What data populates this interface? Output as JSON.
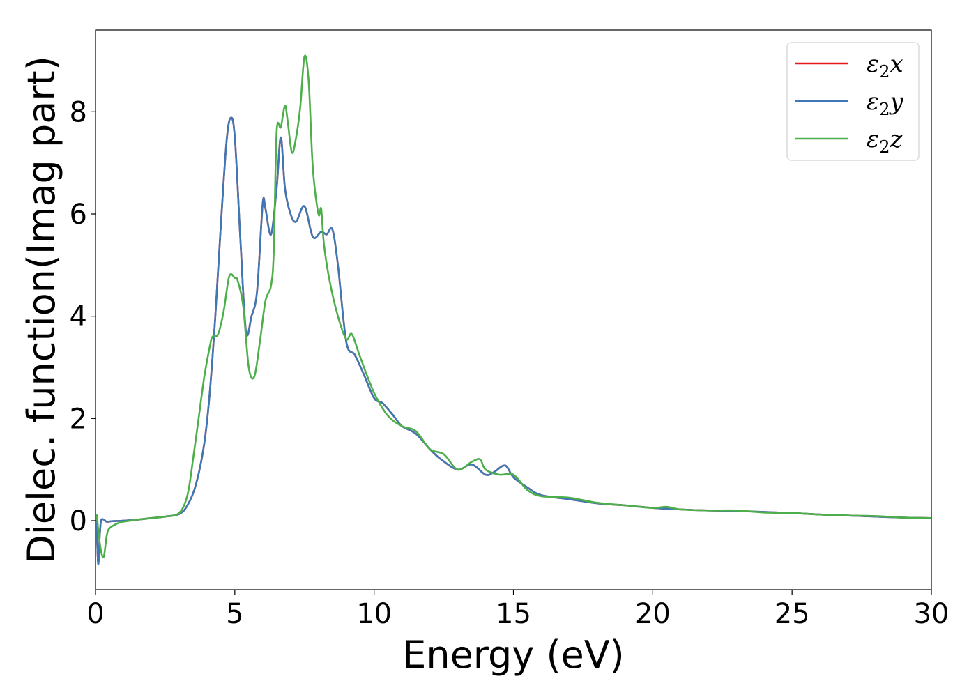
{
  "chart_data": {
    "type": "line",
    "title": "",
    "xlabel": "Energy (eV)",
    "ylabel": "Dielec. function(Imag part)",
    "xlim": [
      0,
      30
    ],
    "ylim": [
      -1.35,
      9.6
    ],
    "xticks": [
      0,
      5,
      10,
      15,
      20,
      25,
      30
    ],
    "yticks": [
      0,
      2,
      4,
      6,
      8
    ],
    "grid": false,
    "legend_position": "top-right",
    "series": [
      {
        "name": "ε2x",
        "legend_base": "ε",
        "legend_sub": "2",
        "legend_var": "x",
        "color": "#e41a1c",
        "x": [
          0.0,
          0.05,
          0.1,
          0.15,
          0.2,
          0.3,
          0.4,
          0.6,
          1.0,
          1.5,
          2.0,
          2.5,
          3.0,
          3.3,
          3.6,
          3.9,
          4.1,
          4.3,
          4.5,
          4.7,
          4.85,
          5.0,
          5.2,
          5.4,
          5.6,
          5.8,
          6.0,
          6.1,
          6.3,
          6.5,
          6.65,
          6.8,
          7.0,
          7.2,
          7.5,
          7.8,
          8.1,
          8.3,
          8.5,
          8.7,
          9.0,
          9.3,
          9.6,
          10.0,
          10.3,
          10.7,
          11.0,
          11.5,
          12.0,
          12.4,
          13.0,
          13.5,
          14.0,
          14.3,
          14.7,
          15.0,
          15.5,
          16.0,
          17.0,
          18.0,
          19.0,
          20.0,
          21.0,
          22.0,
          23.0,
          24.0,
          25.0,
          26.0,
          27.0,
          28.0,
          29.0,
          30.0
        ],
        "values": [
          0.1,
          -0.3,
          -0.85,
          -0.3,
          0.0,
          0.02,
          -0.02,
          -0.01,
          0.0,
          0.02,
          0.05,
          0.08,
          0.13,
          0.3,
          0.7,
          1.5,
          2.5,
          4.0,
          5.8,
          7.4,
          7.88,
          7.5,
          5.5,
          3.7,
          4.0,
          4.5,
          6.2,
          6.1,
          5.6,
          6.5,
          7.5,
          6.5,
          6.0,
          5.85,
          6.15,
          5.55,
          5.65,
          5.6,
          5.7,
          5.0,
          3.5,
          3.25,
          2.9,
          2.4,
          2.3,
          2.05,
          1.85,
          1.7,
          1.4,
          1.2,
          1.0,
          1.1,
          0.9,
          0.95,
          1.08,
          0.85,
          0.65,
          0.5,
          0.42,
          0.34,
          0.3,
          0.25,
          0.22,
          0.2,
          0.19,
          0.17,
          0.15,
          0.12,
          0.1,
          0.08,
          0.06,
          0.05
        ]
      },
      {
        "name": "ε2y",
        "legend_base": "ε",
        "legend_sub": "2",
        "legend_var": "y",
        "color": "#3f78b4",
        "x": [
          0.0,
          0.05,
          0.1,
          0.15,
          0.2,
          0.3,
          0.4,
          0.6,
          1.0,
          1.5,
          2.0,
          2.5,
          3.0,
          3.3,
          3.6,
          3.9,
          4.1,
          4.3,
          4.5,
          4.7,
          4.85,
          5.0,
          5.2,
          5.4,
          5.6,
          5.8,
          6.0,
          6.1,
          6.3,
          6.5,
          6.65,
          6.8,
          7.0,
          7.2,
          7.5,
          7.8,
          8.1,
          8.3,
          8.5,
          8.7,
          9.0,
          9.3,
          9.6,
          10.0,
          10.3,
          10.7,
          11.0,
          11.5,
          12.0,
          12.4,
          13.0,
          13.5,
          14.0,
          14.3,
          14.7,
          15.0,
          15.5,
          16.0,
          17.0,
          18.0,
          19.0,
          20.0,
          21.0,
          22.0,
          23.0,
          24.0,
          25.0,
          26.0,
          27.0,
          28.0,
          29.0,
          30.0
        ],
        "values": [
          0.1,
          -0.3,
          -0.85,
          -0.3,
          0.0,
          0.02,
          -0.02,
          -0.01,
          0.0,
          0.02,
          0.05,
          0.08,
          0.13,
          0.3,
          0.7,
          1.5,
          2.5,
          4.0,
          5.8,
          7.4,
          7.88,
          7.5,
          5.5,
          3.7,
          4.0,
          4.5,
          6.2,
          6.1,
          5.6,
          6.5,
          7.5,
          6.5,
          6.0,
          5.85,
          6.15,
          5.55,
          5.65,
          5.6,
          5.7,
          5.0,
          3.5,
          3.25,
          2.9,
          2.4,
          2.3,
          2.05,
          1.85,
          1.7,
          1.4,
          1.2,
          1.0,
          1.1,
          0.9,
          0.95,
          1.08,
          0.85,
          0.65,
          0.5,
          0.42,
          0.34,
          0.3,
          0.25,
          0.22,
          0.2,
          0.19,
          0.17,
          0.15,
          0.12,
          0.1,
          0.08,
          0.06,
          0.05
        ]
      },
      {
        "name": "ε2z",
        "legend_base": "ε",
        "legend_sub": "2",
        "legend_var": "z",
        "color": "#4daf4a",
        "x": [
          0.0,
          0.05,
          0.1,
          0.2,
          0.3,
          0.4,
          0.5,
          0.8,
          1.0,
          1.5,
          2.0,
          2.5,
          3.0,
          3.3,
          3.5,
          3.7,
          3.9,
          4.1,
          4.2,
          4.4,
          4.6,
          4.8,
          5.0,
          5.1,
          5.3,
          5.5,
          5.7,
          5.9,
          6.1,
          6.3,
          6.4,
          6.5,
          6.65,
          6.8,
          6.9,
          7.05,
          7.2,
          7.35,
          7.5,
          7.65,
          7.8,
          8.0,
          8.1,
          8.2,
          8.4,
          8.7,
          9.0,
          9.2,
          9.5,
          10.0,
          10.5,
          11.0,
          11.5,
          12.0,
          12.5,
          13.0,
          13.5,
          13.8,
          14.0,
          14.5,
          15.0,
          15.5,
          16.0,
          17.0,
          18.0,
          19.0,
          20.0,
          20.5,
          21.0,
          22.0,
          23.0,
          24.0,
          25.0,
          26.0,
          27.0,
          28.0,
          29.0,
          30.0
        ],
        "values": [
          0.0,
          0.1,
          -0.2,
          -0.6,
          -0.7,
          -0.3,
          -0.15,
          -0.05,
          -0.02,
          0.02,
          0.05,
          0.08,
          0.15,
          0.5,
          1.2,
          2.0,
          2.8,
          3.4,
          3.6,
          3.65,
          4.1,
          4.78,
          4.75,
          4.7,
          4.2,
          3.0,
          2.82,
          3.5,
          4.3,
          4.6,
          5.3,
          7.6,
          7.7,
          8.12,
          7.8,
          7.2,
          7.5,
          8.1,
          9.08,
          8.6,
          6.9,
          6.0,
          6.1,
          5.4,
          4.7,
          4.0,
          3.55,
          3.65,
          3.2,
          2.5,
          2.05,
          1.85,
          1.75,
          1.4,
          1.3,
          1.0,
          1.15,
          1.2,
          1.0,
          0.9,
          0.9,
          0.6,
          0.48,
          0.45,
          0.35,
          0.3,
          0.25,
          0.27,
          0.22,
          0.2,
          0.2,
          0.16,
          0.15,
          0.12,
          0.1,
          0.09,
          0.06,
          0.05
        ]
      }
    ]
  }
}
